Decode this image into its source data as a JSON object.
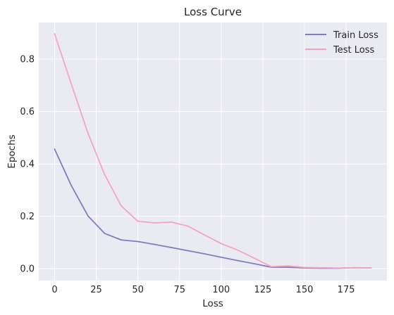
{
  "chart_data": {
    "type": "line",
    "title": "Loss Curve",
    "xlabel": "Loss",
    "ylabel": "Epochs",
    "xlim": [
      -9.5,
      199.5
    ],
    "ylim": [
      -0.045,
      0.94
    ],
    "xticks": [
      0,
      25,
      50,
      75,
      100,
      125,
      150,
      175
    ],
    "xtick_labels": [
      "0",
      "25",
      "50",
      "75",
      "100",
      "125",
      "150",
      "175"
    ],
    "yticks": [
      0.0,
      0.2,
      0.4,
      0.6,
      0.8
    ],
    "ytick_labels": [
      "0.0",
      "0.2",
      "0.4",
      "0.6",
      "0.8"
    ],
    "grid": true,
    "legend_position": "top-right",
    "x": [
      0,
      10,
      20,
      30,
      40,
      50,
      60,
      70,
      80,
      90,
      100,
      110,
      120,
      130,
      140,
      150,
      160,
      170,
      180,
      190
    ],
    "series": [
      {
        "name": "Train Loss",
        "color": "#8379C6",
        "values": [
          0.457,
          0.318,
          0.202,
          0.135,
          0.11,
          0.104,
          0.093,
          0.081,
          0.069,
          0.057,
          0.044,
          0.031,
          0.019,
          0.006,
          0.006,
          0.003,
          0.002,
          0.002,
          0.004,
          0.003
        ]
      },
      {
        "name": "Test Loss",
        "color": "#F4A4C0",
        "values": [
          0.897,
          0.706,
          0.518,
          0.36,
          0.24,
          0.181,
          0.175,
          0.178,
          0.163,
          0.129,
          0.096,
          0.071,
          0.04,
          0.008,
          0.011,
          0.005,
          0.004,
          0.003,
          0.004,
          0.003
        ]
      }
    ]
  }
}
